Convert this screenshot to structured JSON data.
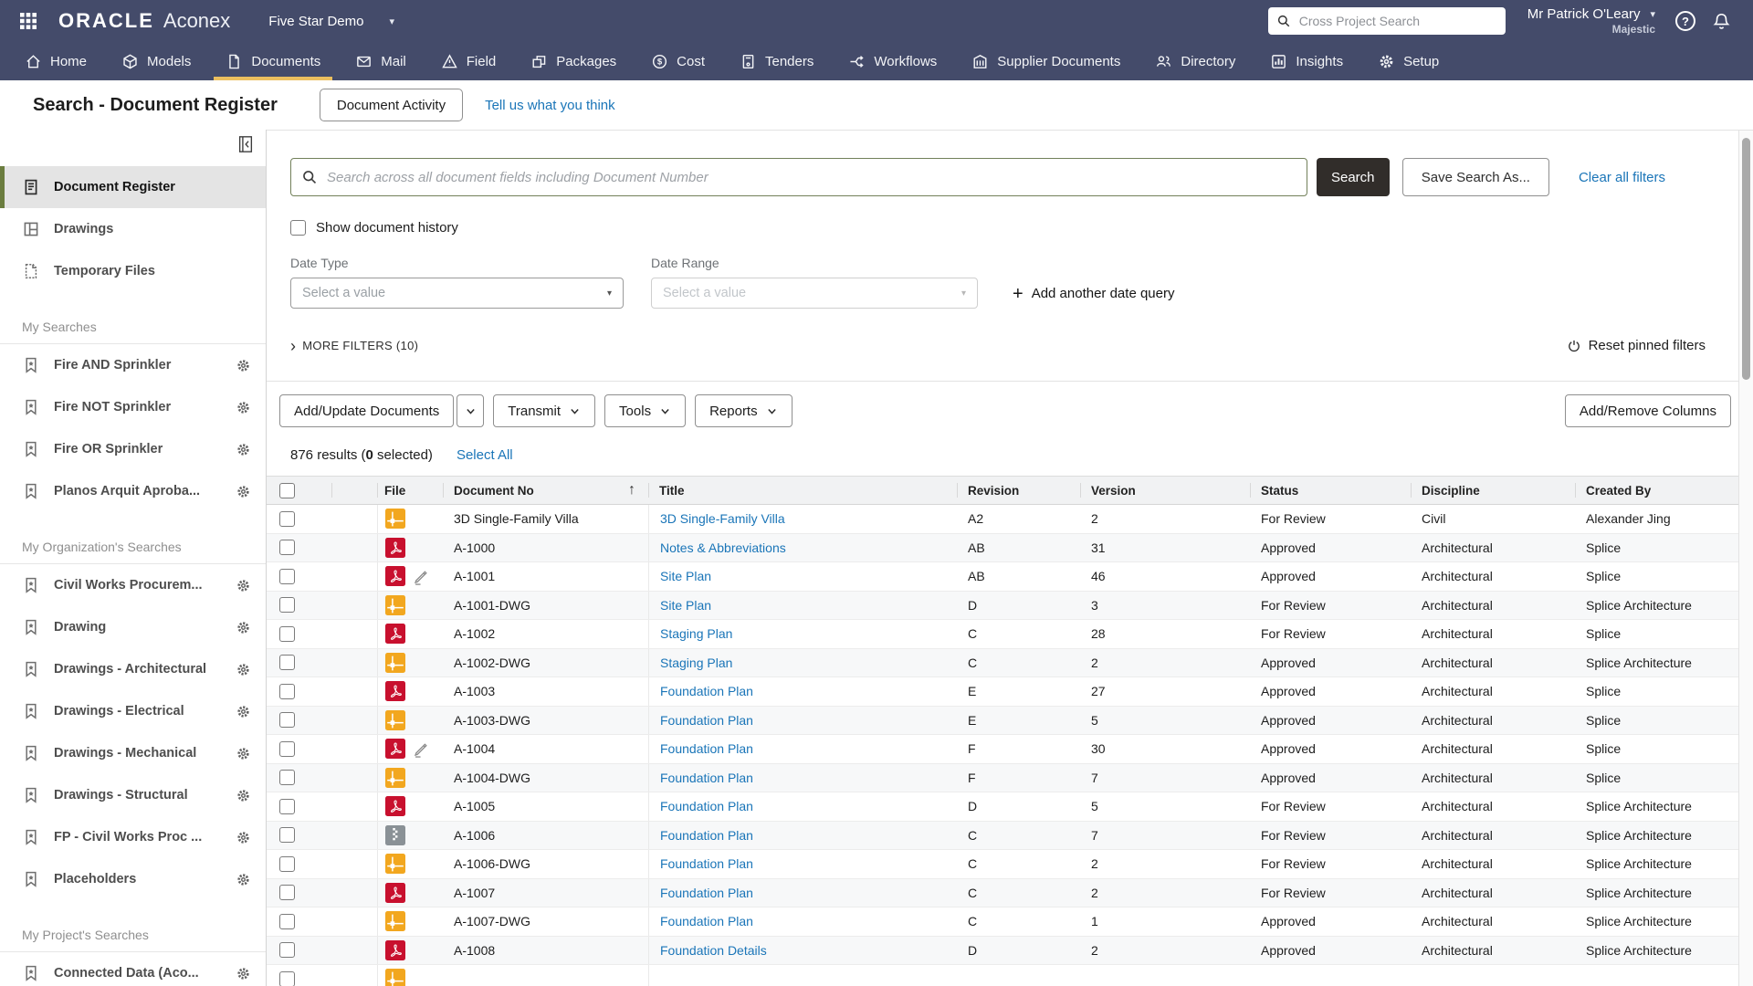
{
  "colors": {
    "navbar": "#444b6a",
    "gold": "#ecbf5f",
    "link": "#1a75b8",
    "pdf": "#c8102e",
    "dwg": "#f2a71f",
    "zip": "#8a9196",
    "green": "#6b7d3f",
    "darkbtn": "#312d2a"
  },
  "glyphs": {
    "caret": "▾",
    "help": "?",
    "plus": "+",
    "chevron_right": "›",
    "sort_asc": "↑"
  },
  "topbar": {
    "brand": "ORACLE",
    "product": "Aconex",
    "project": "Five Star Demo",
    "cross_search_placeholder": "Cross Project Search",
    "user_name": "Mr Patrick O'Leary",
    "user_org": "Majestic",
    "nav": [
      {
        "label": "Home",
        "icon": "home"
      },
      {
        "label": "Models",
        "icon": "models"
      },
      {
        "label": "Documents",
        "icon": "documents",
        "active": true
      },
      {
        "label": "Mail",
        "icon": "mail"
      },
      {
        "label": "Field",
        "icon": "field"
      },
      {
        "label": "Packages",
        "icon": "packages"
      },
      {
        "label": "Cost",
        "icon": "cost"
      },
      {
        "label": "Tenders",
        "icon": "tenders"
      },
      {
        "label": "Workflows",
        "icon": "workflows"
      },
      {
        "label": "Supplier Documents",
        "icon": "supplier"
      },
      {
        "label": "Directory",
        "icon": "directory"
      },
      {
        "label": "Insights",
        "icon": "insights"
      },
      {
        "label": "Setup",
        "icon": "gear"
      }
    ]
  },
  "page": {
    "title": "Search - Document Register",
    "activity_button": "Document Activity",
    "feedback_link": "Tell us what you think"
  },
  "sidebar": {
    "top_items": [
      {
        "label": "Document Register",
        "icon": "register",
        "active": true
      },
      {
        "label": "Drawings",
        "icon": "drawings"
      },
      {
        "label": "Temporary Files",
        "icon": "tempfiles"
      }
    ],
    "sections": [
      {
        "label": "My Searches",
        "items": [
          "Fire AND Sprinkler",
          "Fire NOT Sprinkler",
          "Fire OR Sprinkler",
          "Planos Arquit Aproba..."
        ]
      },
      {
        "label": "My Organization's Searches",
        "items": [
          "Civil Works Procurem...",
          "Drawing",
          "Drawings - Architectural",
          "Drawings - Electrical",
          "Drawings - Mechanical",
          "Drawings - Structural",
          "FP - Civil Works Proc ...",
          "Placeholders"
        ]
      },
      {
        "label": "My Project's Searches",
        "items": [
          "Connected Data (Aco..."
        ]
      }
    ]
  },
  "filters": {
    "search_placeholder": "Search across all document fields including Document Number",
    "search_button": "Search",
    "save_search_button": "Save Search As...",
    "clear_filters_link": "Clear all filters",
    "show_history_label": "Show document history",
    "date_type_label": "Date Type",
    "date_range_label": "Date Range",
    "date_type_placeholder": "Select a value",
    "date_range_placeholder": "Select a value",
    "add_date_query": "Add another date query",
    "more_filters": "MORE FILTERS (10)",
    "reset_pinned": "Reset pinned filters"
  },
  "toolbar": {
    "add_update": "Add/Update Documents",
    "transmit": "Transmit",
    "tools": "Tools",
    "reports": "Reports",
    "add_remove_columns": "Add/Remove Columns"
  },
  "results": {
    "prefix": "876 results (",
    "selected": "0",
    "suffix": " selected)",
    "select_all": "Select All"
  },
  "table": {
    "columns": [
      "File",
      "Document No",
      "Title",
      "Revision",
      "Version",
      "Status",
      "Discipline",
      "Created By"
    ],
    "sort": {
      "column": "Document No",
      "direction": "ascending"
    },
    "rows": [
      {
        "doc_no": "3D Single-Family Villa",
        "file": "dwg",
        "edited": false,
        "title": "3D Single-Family Villa",
        "revision": "A2",
        "version": "2",
        "status": "For Review",
        "discipline": "Civil",
        "created_by": "Alexander Jing"
      },
      {
        "doc_no": "A-1000",
        "file": "pdf",
        "edited": false,
        "title": "Notes & Abbreviations",
        "revision": "AB",
        "version": "31",
        "status": "Approved",
        "discipline": "Architectural",
        "created_by": "Splice"
      },
      {
        "doc_no": "A-1001",
        "file": "pdf",
        "edited": true,
        "title": "Site Plan",
        "revision": "AB",
        "version": "46",
        "status": "Approved",
        "discipline": "Architectural",
        "created_by": "Splice"
      },
      {
        "doc_no": "A-1001-DWG",
        "file": "dwg",
        "edited": false,
        "title": "Site Plan",
        "revision": "D",
        "version": "3",
        "status": "For Review",
        "discipline": "Architectural",
        "created_by": "Splice Architecture"
      },
      {
        "doc_no": "A-1002",
        "file": "pdf",
        "edited": false,
        "title": "Staging Plan",
        "revision": "C",
        "version": "28",
        "status": "For Review",
        "discipline": "Architectural",
        "created_by": "Splice"
      },
      {
        "doc_no": "A-1002-DWG",
        "file": "dwg",
        "edited": false,
        "title": "Staging Plan",
        "revision": "C",
        "version": "2",
        "status": "Approved",
        "discipline": "Architectural",
        "created_by": "Splice Architecture"
      },
      {
        "doc_no": "A-1003",
        "file": "pdf",
        "edited": false,
        "title": "Foundation Plan",
        "revision": "E",
        "version": "27",
        "status": "Approved",
        "discipline": "Architectural",
        "created_by": "Splice"
      },
      {
        "doc_no": "A-1003-DWG",
        "file": "dwg",
        "edited": false,
        "title": "Foundation Plan",
        "revision": "E",
        "version": "5",
        "status": "Approved",
        "discipline": "Architectural",
        "created_by": "Splice"
      },
      {
        "doc_no": "A-1004",
        "file": "pdf",
        "edited": true,
        "title": "Foundation Plan",
        "revision": "F",
        "version": "30",
        "status": "Approved",
        "discipline": "Architectural",
        "created_by": "Splice"
      },
      {
        "doc_no": "A-1004-DWG",
        "file": "dwg",
        "edited": false,
        "title": "Foundation Plan",
        "revision": "F",
        "version": "7",
        "status": "Approved",
        "discipline": "Architectural",
        "created_by": "Splice"
      },
      {
        "doc_no": "A-1005",
        "file": "pdf",
        "edited": false,
        "title": "Foundation Plan",
        "revision": "D",
        "version": "5",
        "status": "For Review",
        "discipline": "Architectural",
        "created_by": "Splice Architecture"
      },
      {
        "doc_no": "A-1006",
        "file": "zip",
        "edited": false,
        "title": "Foundation Plan",
        "revision": "C",
        "version": "7",
        "status": "For Review",
        "discipline": "Architectural",
        "created_by": "Splice Architecture"
      },
      {
        "doc_no": "A-1006-DWG",
        "file": "dwg",
        "edited": false,
        "title": "Foundation Plan",
        "revision": "C",
        "version": "2",
        "status": "For Review",
        "discipline": "Architectural",
        "created_by": "Splice Architecture"
      },
      {
        "doc_no": "A-1007",
        "file": "pdf",
        "edited": false,
        "title": "Foundation Plan",
        "revision": "C",
        "version": "2",
        "status": "For Review",
        "discipline": "Architectural",
        "created_by": "Splice Architecture"
      },
      {
        "doc_no": "A-1007-DWG",
        "file": "dwg",
        "edited": false,
        "title": "Foundation Plan",
        "revision": "C",
        "version": "1",
        "status": "Approved",
        "discipline": "Architectural",
        "created_by": "Splice Architecture"
      },
      {
        "doc_no": "A-1008",
        "file": "pdf",
        "edited": false,
        "title": "Foundation Details",
        "revision": "D",
        "version": "2",
        "status": "Approved",
        "discipline": "Architectural",
        "created_by": "Splice Architecture"
      },
      {
        "doc_no": "",
        "file": "dwg",
        "edited": false,
        "title": "",
        "revision": "",
        "version": "",
        "status": "",
        "discipline": "",
        "created_by": ""
      }
    ]
  }
}
